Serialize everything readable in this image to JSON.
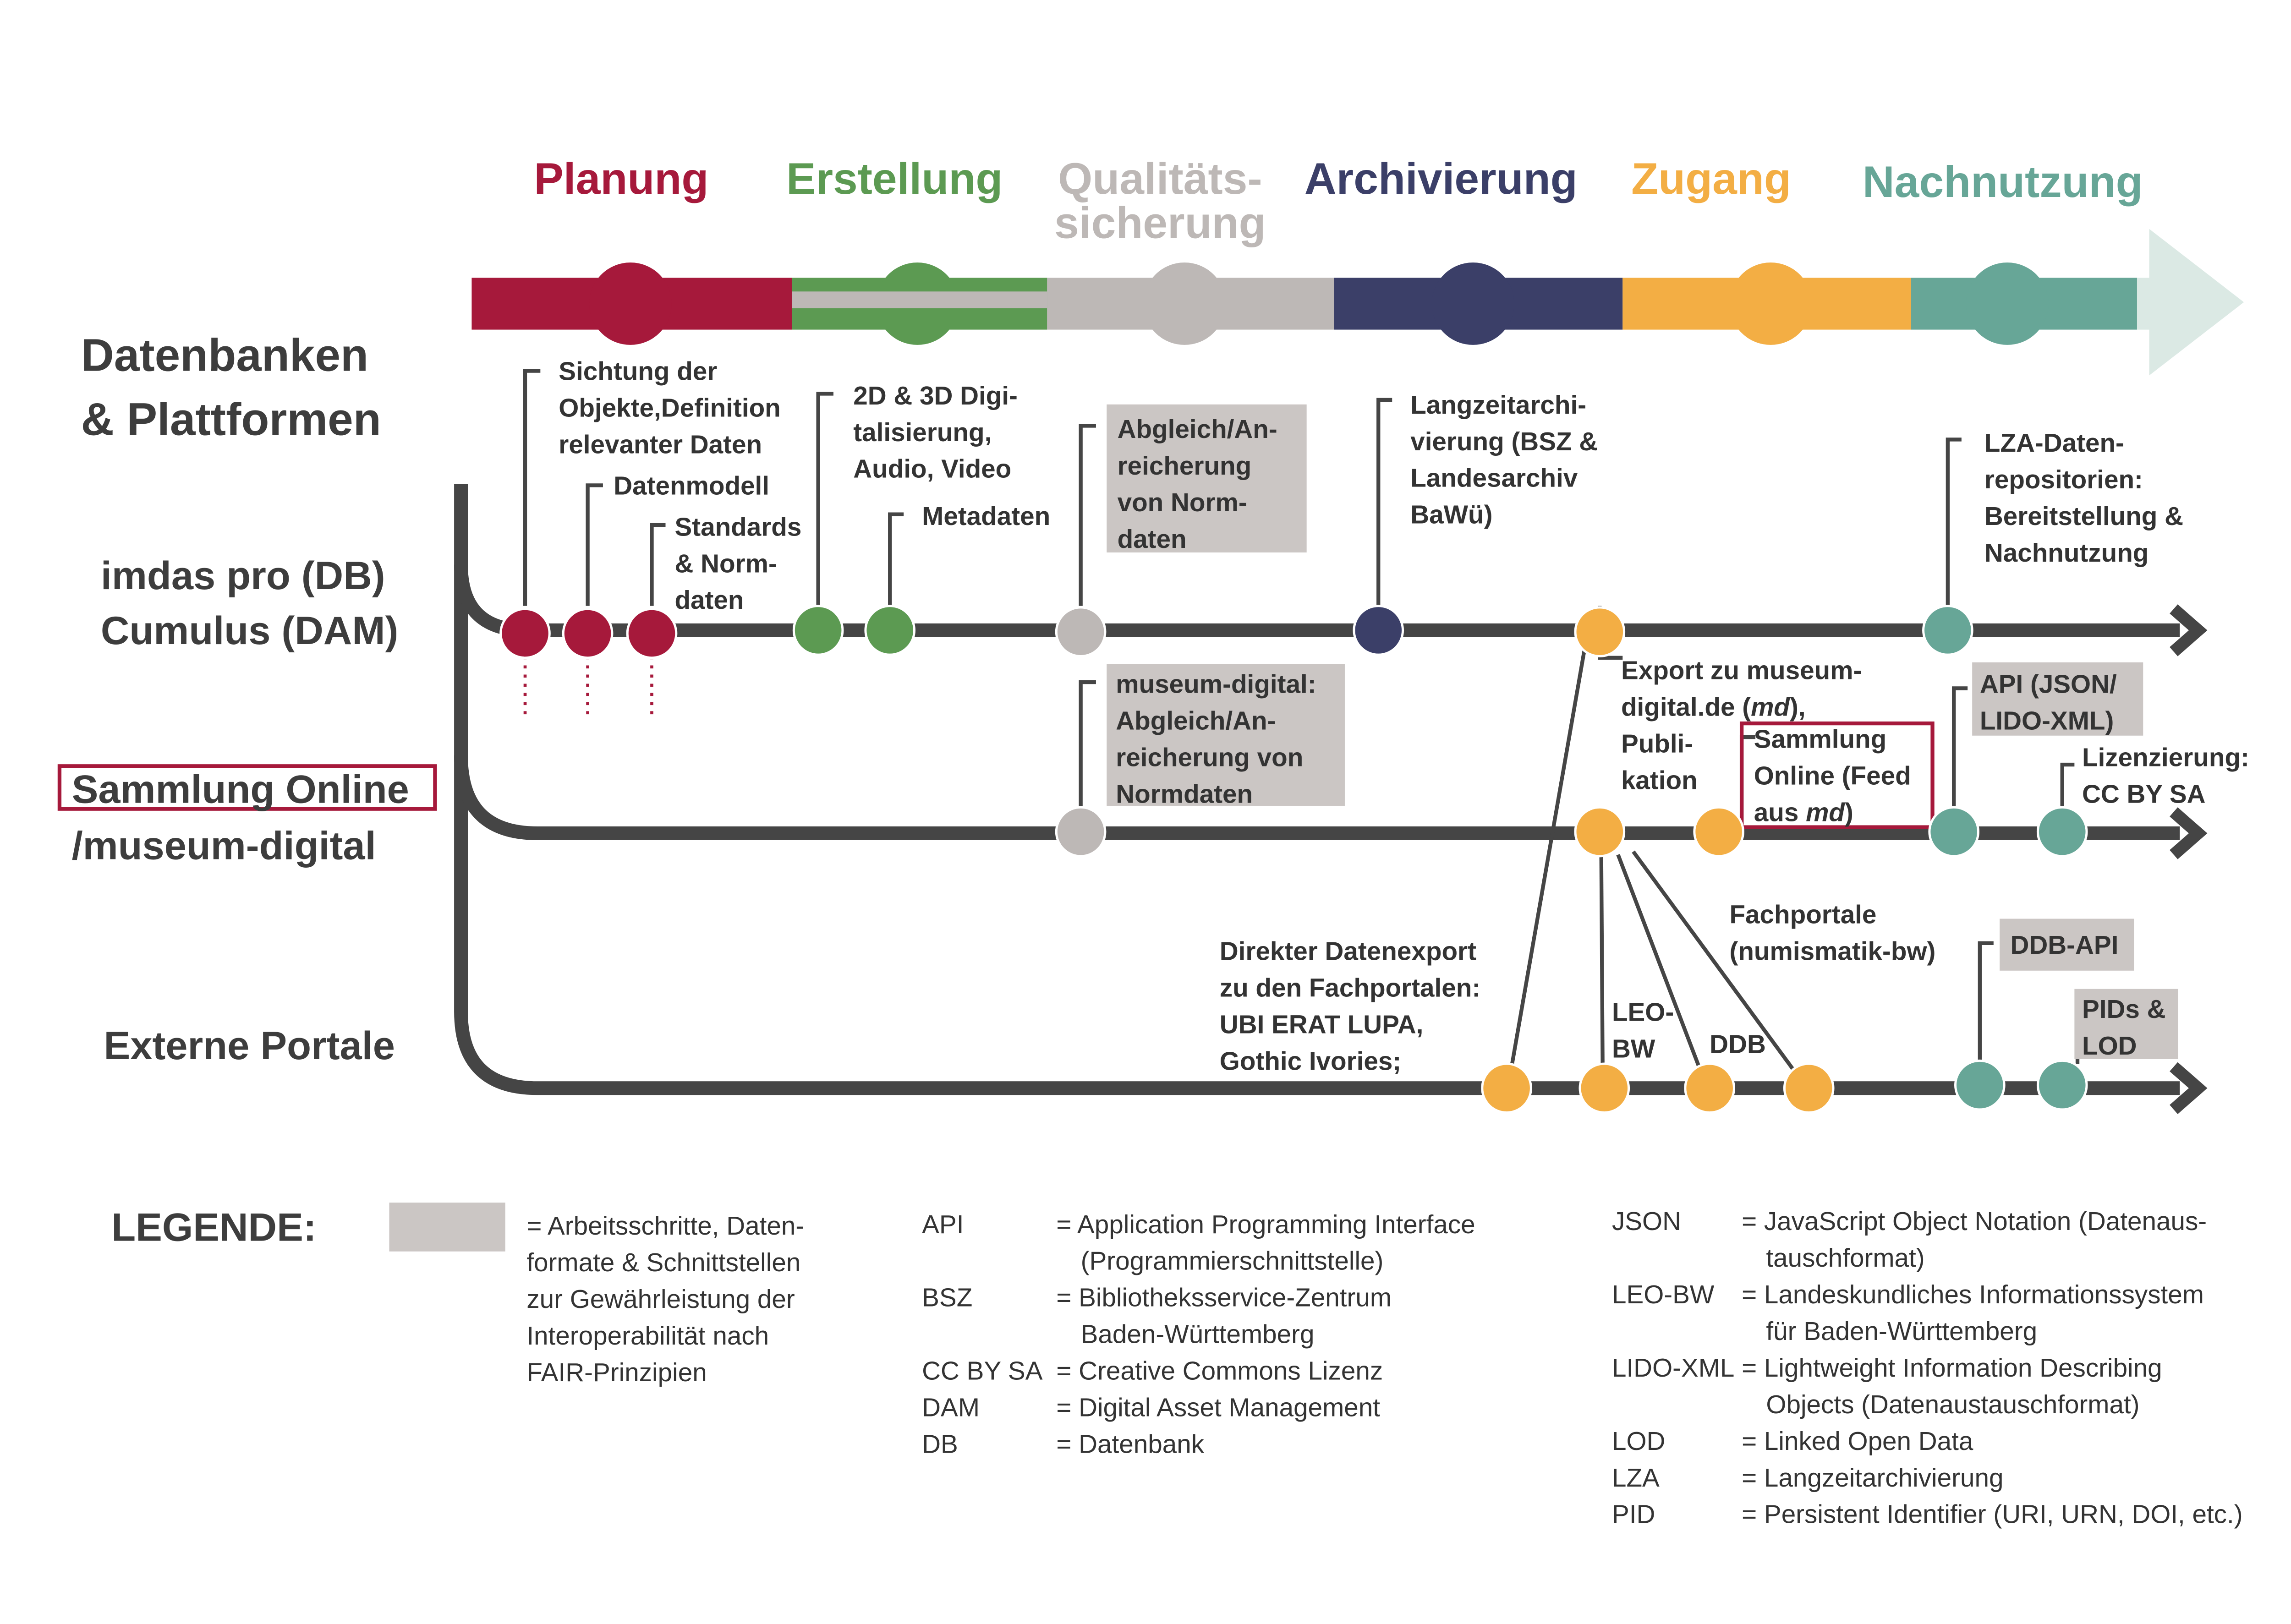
{
  "phases": [
    {
      "label": "Planung",
      "color": "#a6193b"
    },
    {
      "label": "Erstellung",
      "color": "#5c9a52"
    },
    {
      "label": "Qualitäts-",
      "label2": "sicherung",
      "color": "#bdb8b6"
    },
    {
      "label": "Archivierung",
      "color": "#3b3f68"
    },
    {
      "label": "Zugang",
      "color": "#f3ae44"
    },
    {
      "label": "Nachnutzung",
      "color": "#67a697"
    }
  ],
  "section_title": {
    "line1": "Datenbanken",
    "line2": "& Plattformen"
  },
  "lanes": {
    "lane1": {
      "line1": "imdas pro (DB)",
      "line2": "Cumulus (DAM)"
    },
    "lane2": {
      "line1": "Sammlung Online",
      "line2": "/museum-digital"
    },
    "lane3": {
      "line1": "Externe Portale"
    }
  },
  "labels": {
    "sichtung": [
      "Sichtung der",
      "Objekte,Definition",
      "relevanter Daten"
    ],
    "datenmodell": [
      "Datenmodell"
    ],
    "standards": [
      "Standards",
      "& Norm-",
      "daten"
    ],
    "digitalisierung": [
      "2D & 3D Digi-",
      "talisierung,",
      "Audio, Video"
    ],
    "metadaten": [
      "Metadaten"
    ],
    "abgleich": [
      "Abgleich/An-",
      "reicherung",
      "von Norm-",
      "daten"
    ],
    "langzeit": [
      "Langzeitarchi-",
      "vierung (BSZ &",
      "Landesarchiv",
      "BaWü)"
    ],
    "lza": [
      "LZA-Daten-",
      "repositorien:",
      "Bereitstellung &",
      "Nachnutzung"
    ],
    "museum_digital": [
      "museum-digital:",
      "Abgleich/An-",
      "reicherung von",
      "Normdaten"
    ],
    "export": [
      "Export zu museum-",
      "digital.de (md),",
      "Publi-",
      "kation"
    ],
    "export_md": "md",
    "sammlung_feed": [
      "Sammlung",
      "Online (Feed",
      "aus md)"
    ],
    "api": [
      "API (JSON/",
      "LIDO-XML)"
    ],
    "lizenz": [
      "Lizenzierung:",
      "CC BY SA"
    ],
    "direkter": [
      "Direkter Datenexport",
      "zu den Fachportalen:",
      "UBI ERAT LUPA,",
      "Gothic Ivories;"
    ],
    "leobw": [
      "LEO-",
      "BW"
    ],
    "ddb": [
      "DDB"
    ],
    "fachportale": [
      "Fachportale",
      "(numismatik-bw)"
    ],
    "ddb_api": [
      "DDB-API"
    ],
    "pids": [
      "PIDs &",
      "LOD"
    ]
  },
  "legend": {
    "title": "LEGENDE:",
    "box_text": [
      "= Arbeitsschritte, Daten-",
      "formate & Schnittstellen",
      "zur Gewährleistung der",
      "Interoperabilität nach",
      "FAIR-Prinzipien"
    ],
    "col1": [
      {
        "abbr": "API",
        "lines": [
          "= Application Programming Interface",
          "(Programmierschnittstelle)"
        ]
      },
      {
        "abbr": "BSZ",
        "lines": [
          "= Bibliotheksservice-Zentrum",
          "Baden-Württemberg"
        ]
      },
      {
        "abbr": "CC BY SA",
        "lines": [
          "= Creative Commons Lizenz"
        ]
      },
      {
        "abbr": "DAM",
        "lines": [
          "= Digital Asset Management"
        ]
      },
      {
        "abbr": "DB",
        "lines": [
          "= Datenbank"
        ]
      }
    ],
    "col2": [
      {
        "abbr": "JSON",
        "lines": [
          "= JavaScript Object Notation (Datenaus-",
          "tauschformat)"
        ]
      },
      {
        "abbr": "LEO-BW",
        "lines": [
          "= Landeskundliches Informationssystem",
          "für Baden-Württemberg"
        ]
      },
      {
        "abbr": "LIDO-XML",
        "lines": [
          "= Lightweight Information Describing",
          "Objects (Datenaustauschformat)"
        ]
      },
      {
        "abbr": "LOD",
        "lines": [
          "= Linked Open Data"
        ]
      },
      {
        "abbr": "LZA",
        "lines": [
          "= Langzeitarchivierung"
        ]
      },
      {
        "abbr": "PID",
        "lines": [
          "= Persistent Identifier (URI, URN, DOI, etc.)"
        ]
      }
    ]
  },
  "colors": {
    "planung": "#a6193b",
    "erstellung": "#5c9a52",
    "qualitaet": "#bdb8b6",
    "archivierung": "#3b3f68",
    "zugang": "#f3ae44",
    "nachnutzung": "#67a697",
    "highlight_box": "#cbc6c4",
    "rail": "#454545",
    "frame": "#a6193b"
  }
}
